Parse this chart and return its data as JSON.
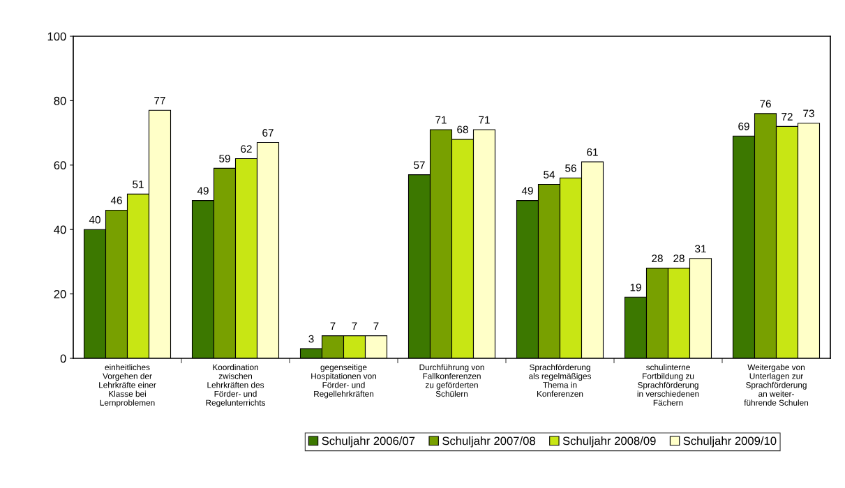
{
  "chart_data": {
    "type": "bar",
    "categories": [
      "einheitliches\nVorgehen der\nLehrkräfte einer\nKlasse bei\nLernproblemen",
      "Koordination\nzwischen\nLehrkräften des\nFörder- und\nRegelunterrichts",
      "gegenseitige\nHospitationen von\nFörder- und\nRegellehrkräften",
      "Durchführung von\nFallkonferenzen\nzu geförderten\nSchülern",
      "Sprachförderung\nals regelmäßiges\nThema in\nKonferenzen",
      "schulinterne\nFortbildung zu\nSprachförderung\nin verschiedenen\nFächern",
      "Weitergabe von\nUnterlagen zur\nSprachförderung\nan weiter-\nführende Schulen"
    ],
    "series": [
      {
        "name": "Schuljahr 2006/07",
        "color": "#3c7800",
        "values": [
          40,
          49,
          3,
          57,
          49,
          19,
          69
        ]
      },
      {
        "name": "Schuljahr 2007/08",
        "color": "#78a000",
        "values": [
          46,
          59,
          7,
          71,
          54,
          28,
          76
        ]
      },
      {
        "name": "Schuljahr 2008/09",
        "color": "#c8e614",
        "values": [
          51,
          62,
          7,
          68,
          56,
          28,
          72
        ]
      },
      {
        "name": "Schuljahr 2009/10",
        "color": "#ffffc8",
        "values": [
          77,
          67,
          7,
          71,
          61,
          31,
          73
        ]
      }
    ],
    "ylim": [
      0,
      100
    ],
    "yticks": [
      0,
      20,
      40,
      60,
      80,
      100
    ],
    "data_labels": true,
    "grid": false,
    "legend": "bottom"
  }
}
